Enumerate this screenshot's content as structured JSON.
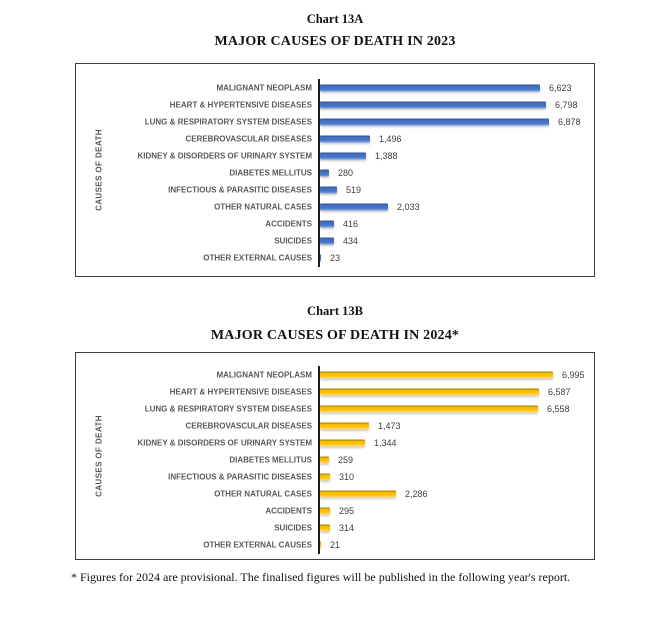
{
  "page": {
    "footnote": "* Figures for 2024 are provisional. The finalised figures will be published in the following year's report."
  },
  "chart_data": [
    {
      "type": "bar",
      "orientation": "horizontal",
      "title": "Chart 13A",
      "subtitle": "MAJOR CAUSES OF DEATH IN 2023",
      "ylabel": "CAUSES OF DEATH",
      "categories": [
        "MALIGNANT NEOPLASM",
        "HEART & HYPERTENSIVE DISEASES",
        "LUNG & RESPIRATORY SYSTEM DISEASES",
        "CEREBROVASCULAR DISEASES",
        "KIDNEY & DISORDERS OF URINARY SYSTEM",
        "DIABETES MELLITUS",
        "INFECTIOUS & PARASITIC DISEASES",
        "OTHER NATURAL CASES",
        "ACCIDENTS",
        "SUICIDES",
        "OTHER EXTERNAL CAUSES"
      ],
      "values": [
        6623,
        6798,
        6878,
        1496,
        1388,
        280,
        519,
        2033,
        416,
        434,
        23
      ],
      "value_labels": [
        "6,623",
        "6,798",
        "6,878",
        "1,496",
        "1,388",
        "280",
        "519",
        "2,033",
        "416",
        "434",
        "23"
      ],
      "axis_max": 8000,
      "grid": false,
      "legend": false,
      "data_labels": true,
      "bar_colors": {
        "main": "#4472C4",
        "dark": "#2E5396",
        "light": "#7BA0DD"
      },
      "label_color": "#595959",
      "value_label_color": "#3D3D3D"
    },
    {
      "type": "bar",
      "orientation": "horizontal",
      "title": "Chart 13B",
      "subtitle": "MAJOR CAUSES OF DEATH IN 2024*",
      "ylabel": "CAUSES OF DEATH",
      "categories": [
        "MALIGNANT NEOPLASM",
        "HEART & HYPERTENSIVE DISEASES",
        "LUNG & RESPIRATORY SYSTEM DISEASES",
        "CEREBROVASCULAR DISEASES",
        "KIDNEY & DISORDERS OF URINARY SYSTEM",
        "DIABETES MELLITUS",
        "INFECTIOUS & PARASITIC DISEASES",
        "OTHER NATURAL CASES",
        "ACCIDENTS",
        "SUICIDES",
        "OTHER EXTERNAL CAUSES"
      ],
      "values": [
        6995,
        6587,
        6558,
        1473,
        1344,
        259,
        310,
        2286,
        295,
        314,
        21
      ],
      "value_labels": [
        "6,995",
        "6,587",
        "6,558",
        "1,473",
        "1,344",
        "259",
        "310",
        "2,286",
        "295",
        "314",
        "21"
      ],
      "axis_max": 8000,
      "grid": false,
      "legend": false,
      "data_labels": true,
      "bar_colors": {
        "main": "#FFC000",
        "dark": "#9C7C00",
        "light": "#FFE08A"
      },
      "label_color": "#595959",
      "value_label_color": "#3D3D3D"
    }
  ]
}
